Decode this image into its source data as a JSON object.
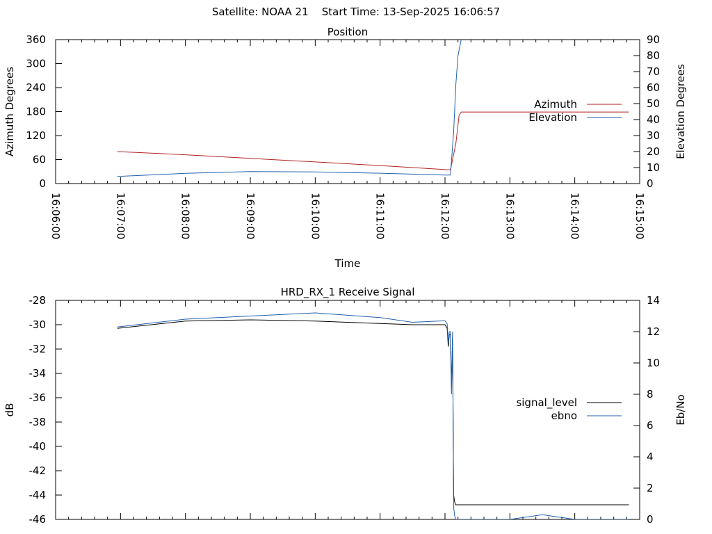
{
  "header": {
    "satellite": "Satellite: NOAA 21",
    "start_time": "Start Time: 13-Sep-2025 16:06:57"
  },
  "chart_data": [
    {
      "type": "line",
      "title": "Position",
      "xlabel": "Time",
      "ylabel": "Azimuth Degrees",
      "y2label": "Elevation Degrees",
      "xlim": [
        "16:06:00",
        "16:15:00"
      ],
      "ylim": [
        0,
        360
      ],
      "y2lim": [
        0,
        90
      ],
      "grid": false,
      "legend_placement": "right",
      "x_tick_labels": [
        "16:06:00",
        "16:07:00",
        "16:08:00",
        "16:09:00",
        "16:10:00",
        "16:11:00",
        "16:12:00",
        "16:13:00",
        "16:14:00",
        "16:15:00"
      ],
      "y_tick_labels": [
        "0",
        "60",
        "120",
        "180",
        "240",
        "300",
        "360"
      ],
      "y2_tick_labels": [
        "0",
        "10",
        "20",
        "30",
        "40",
        "50",
        "60",
        "70",
        "80",
        "90"
      ],
      "series": [
        {
          "name": "Azimuth",
          "axis": "y",
          "color": "#b22222",
          "x": [
            "16:06:57",
            "16:08:00",
            "16:09:00",
            "16:10:00",
            "16:11:00",
            "16:12:00",
            "16:12:05",
            "16:12:10",
            "16:12:13",
            "16:12:15",
            "16:14:50"
          ],
          "y": [
            80,
            72,
            63,
            54,
            45,
            35,
            34,
            100,
            170,
            179,
            179
          ]
        },
        {
          "name": "Elevation",
          "axis": "y2",
          "color": "#1f5fae",
          "x": [
            "16:06:57",
            "16:08:00",
            "16:09:00",
            "16:10:00",
            "16:11:00",
            "16:12:00",
            "16:12:05",
            "16:12:08",
            "16:12:10",
            "16:12:12",
            "16:12:15"
          ],
          "y": [
            4.5,
            6.4,
            7.5,
            7.3,
            6.5,
            5.3,
            5.3,
            32,
            62,
            80,
            90
          ]
        }
      ]
    },
    {
      "type": "line",
      "title": "HRD_RX_1 Receive Signal",
      "ylabel": "dB",
      "y2label": "Eb/No",
      "xlim": [
        "16:06:00",
        "16:15:00"
      ],
      "ylim": [
        -46,
        -28
      ],
      "y2lim": [
        0,
        14
      ],
      "grid": false,
      "legend_placement": "right",
      "y_tick_labels": [
        "-46",
        "-44",
        "-42",
        "-40",
        "-38",
        "-36",
        "-34",
        "-32",
        "-30",
        "-28"
      ],
      "y2_tick_labels": [
        "0",
        "2",
        "4",
        "6",
        "8",
        "10",
        "12",
        "14"
      ],
      "series": [
        {
          "name": "signal_level",
          "axis": "y",
          "color": "#000000",
          "x": [
            "16:06:57",
            "16:08:00",
            "16:09:00",
            "16:10:00",
            "16:11:00",
            "16:11:30",
            "16:12:00",
            "16:12:02",
            "16:12:03",
            "16:12:04",
            "16:12:05",
            "16:12:06",
            "16:12:07",
            "16:12:08",
            "16:12:09",
            "16:12:10",
            "16:12:12",
            "16:13:00",
            "16:14:00",
            "16:14:50"
          ],
          "y": [
            -30.3,
            -29.7,
            -29.6,
            -29.7,
            -29.9,
            -30.0,
            -30.0,
            -30.3,
            -31.8,
            -30.8,
            -30.8,
            -35.0,
            -31.0,
            -44.0,
            -44.6,
            -44.8,
            -44.8,
            -44.8,
            -44.8,
            -44.8
          ]
        },
        {
          "name": "ebno",
          "axis": "y2",
          "color": "#1f5fae",
          "x": [
            "16:06:57",
            "16:08:00",
            "16:09:00",
            "16:10:00",
            "16:11:00",
            "16:11:30",
            "16:12:00",
            "16:12:02",
            "16:12:03",
            "16:12:04",
            "16:12:05",
            "16:12:06",
            "16:12:07",
            "16:12:08",
            "16:12:09",
            "16:12:10",
            "16:12:12",
            "16:13:00",
            "16:13:30",
            "16:14:00",
            "16:14:50"
          ],
          "y": [
            12.3,
            12.8,
            13.0,
            13.2,
            12.9,
            12.6,
            12.7,
            12.5,
            11.3,
            12.0,
            12.0,
            8.0,
            12.0,
            0.8,
            0.2,
            0.0,
            0.0,
            0.0,
            0.3,
            0.0,
            0.0
          ]
        }
      ]
    }
  ]
}
